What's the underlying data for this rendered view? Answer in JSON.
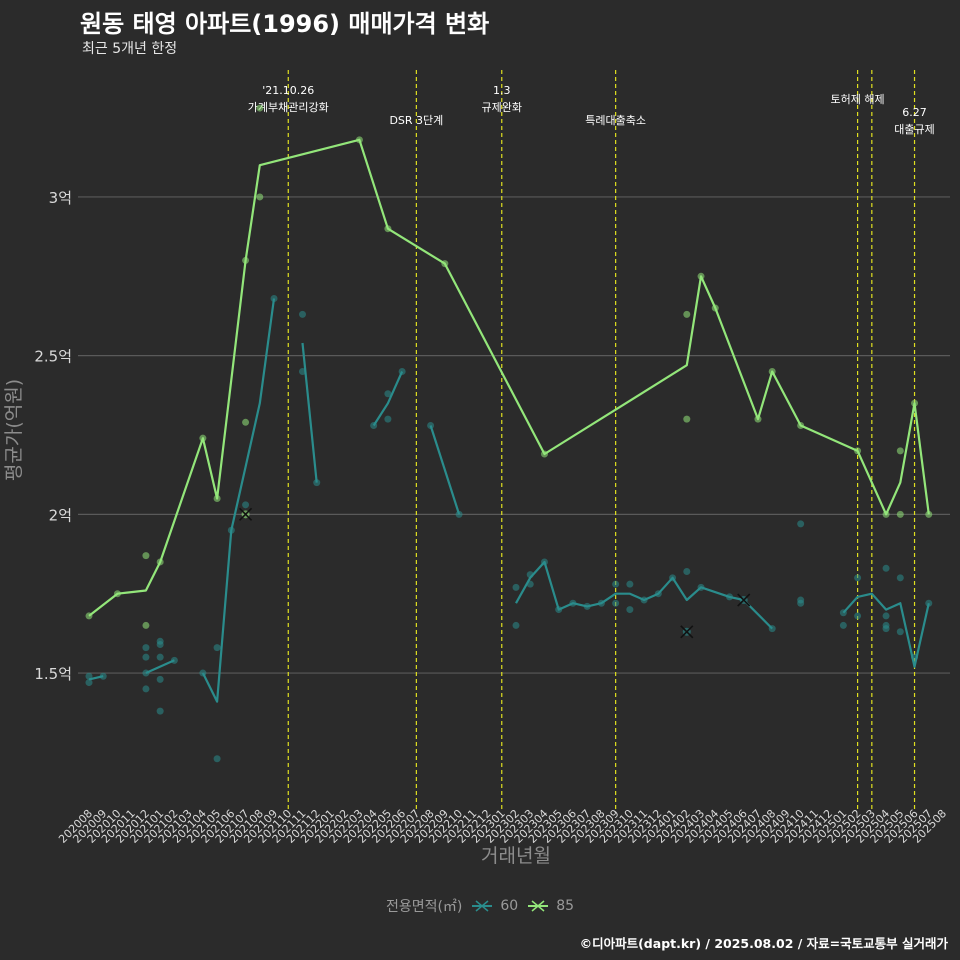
{
  "title": "원동 태영 아파트(1996) 매매가격 변화",
  "subtitle": "최근 5개년 한정",
  "caption": "©디아파트(dapt.kr) / 2025.08.02 / 자료=국토교통부 실거래가",
  "chart_data": {
    "type": "line",
    "xlabel": "거래년월",
    "ylabel": "평균가(억원)",
    "x_categories": [
      "202008",
      "202009",
      "202010",
      "202011",
      "202012",
      "202101",
      "202102",
      "202103",
      "202104",
      "202105",
      "202106",
      "202107",
      "202108",
      "202109",
      "202110",
      "202111",
      "202112",
      "202201",
      "202202",
      "202203",
      "202204",
      "202205",
      "202206",
      "202207",
      "202208",
      "202209",
      "202210",
      "202211",
      "202212",
      "202301",
      "202302",
      "202303",
      "202304",
      "202305",
      "202306",
      "202307",
      "202308",
      "202309",
      "202310",
      "202311",
      "202312",
      "202401",
      "202402",
      "202403",
      "202404",
      "202405",
      "202406",
      "202407",
      "202408",
      "202409",
      "202410",
      "202411",
      "202412",
      "202501",
      "202502",
      "202503",
      "202504",
      "202505",
      "202506",
      "202507",
      "202508"
    ],
    "y_ticks": [
      1.5,
      2,
      2.5,
      3
    ],
    "y_tick_labels": [
      "1.5억",
      "2억",
      "2.5억",
      "3억"
    ],
    "ylim": [
      1.1,
      3.4
    ],
    "grid": true,
    "legend": {
      "title": "전용면적(㎡)",
      "position": "bottom",
      "items": [
        "60",
        "85"
      ]
    },
    "colors": {
      "60": "#2a8c8c",
      "85": "#93e67a",
      "vline": "#e0e020",
      "grid": "#5a5a5a",
      "background": "#2b2b2b"
    },
    "series": [
      {
        "name": "60",
        "segments": [
          [
            [
              "202008",
              1.48
            ],
            [
              "202009",
              1.49
            ]
          ],
          [
            [
              "202012",
              1.5
            ],
            [
              "202102",
              1.54
            ]
          ],
          [
            [
              "202104",
              1.5
            ],
            [
              "202105",
              1.41
            ],
            [
              "202106",
              1.95
            ],
            [
              "202107",
              2.15
            ],
            [
              "202108",
              2.35
            ],
            [
              "202109",
              2.68
            ]
          ],
          [
            [
              "202111",
              2.54
            ],
            [
              "202112",
              2.1
            ]
          ],
          [
            [
              "202204",
              2.28
            ],
            [
              "202205",
              2.35
            ],
            [
              "202206",
              2.45
            ]
          ],
          [
            [
              "202208",
              2.28
            ],
            [
              "202210",
              2.0
            ]
          ],
          [
            [
              "202302",
              1.72
            ],
            [
              "202303",
              1.8
            ],
            [
              "202304",
              1.85
            ],
            [
              "202305",
              1.7
            ],
            [
              "202306",
              1.72
            ],
            [
              "202307",
              1.71
            ],
            [
              "202308",
              1.72
            ],
            [
              "202309",
              1.75
            ],
            [
              "202310",
              1.75
            ],
            [
              "202311",
              1.73
            ],
            [
              "202312",
              1.75
            ],
            [
              "202401",
              1.8
            ],
            [
              "202402",
              1.73
            ],
            [
              "202403",
              1.77
            ],
            [
              "202405",
              1.74
            ],
            [
              "202406",
              1.73
            ],
            [
              "202408",
              1.64
            ]
          ],
          [
            [
              "202501",
              1.69
            ],
            [
              "202502",
              1.74
            ],
            [
              "202503",
              1.75
            ],
            [
              "202504",
              1.7
            ],
            [
              "202505",
              1.72
            ],
            [
              "202506",
              1.52
            ],
            [
              "202507",
              1.72
            ]
          ]
        ],
        "points": [
          [
            "202008",
            1.49
          ],
          [
            "202008",
            1.47
          ],
          [
            "202009",
            1.49
          ],
          [
            "202012",
            1.58
          ],
          [
            "202012",
            1.55
          ],
          [
            "202012",
            1.5
          ],
          [
            "202012",
            1.45
          ],
          [
            "202101",
            1.6
          ],
          [
            "202101",
            1.59
          ],
          [
            "202101",
            1.55
          ],
          [
            "202101",
            1.48
          ],
          [
            "202101",
            1.38
          ],
          [
            "202102",
            1.54
          ],
          [
            "202104",
            1.5
          ],
          [
            "202105",
            1.58
          ],
          [
            "202105",
            1.23
          ],
          [
            "202106",
            1.95
          ],
          [
            "202107",
            2.03
          ],
          [
            "202109",
            2.68
          ],
          [
            "202111",
            2.63
          ],
          [
            "202111",
            2.45
          ],
          [
            "202112",
            2.1
          ],
          [
            "202204",
            2.28
          ],
          [
            "202205",
            2.38
          ],
          [
            "202205",
            2.3
          ],
          [
            "202206",
            2.45
          ],
          [
            "202208",
            2.28
          ],
          [
            "202210",
            2.0
          ],
          [
            "202302",
            1.77
          ],
          [
            "202302",
            1.65
          ],
          [
            "202303",
            1.81
          ],
          [
            "202303",
            1.78
          ],
          [
            "202304",
            1.85
          ],
          [
            "202305",
            1.7
          ],
          [
            "202306",
            1.72
          ],
          [
            "202307",
            1.71
          ],
          [
            "202308",
            1.72
          ],
          [
            "202309",
            1.78
          ],
          [
            "202309",
            1.72
          ],
          [
            "202310",
            1.78
          ],
          [
            "202310",
            1.7
          ],
          [
            "202311",
            1.73
          ],
          [
            "202312",
            1.75
          ],
          [
            "202401",
            1.8
          ],
          [
            "202402",
            1.82
          ],
          [
            "202403",
            1.77
          ],
          [
            "202405",
            1.74
          ],
          [
            "202408",
            1.64
          ],
          [
            "202410",
            1.97
          ],
          [
            "202410",
            1.73
          ],
          [
            "202410",
            1.72
          ],
          [
            "202501",
            1.69
          ],
          [
            "202501",
            1.65
          ],
          [
            "202502",
            1.8
          ],
          [
            "202502",
            1.68
          ],
          [
            "202504",
            1.83
          ],
          [
            "202504",
            1.68
          ],
          [
            "202504",
            1.65
          ],
          [
            "202504",
            1.64
          ],
          [
            "202505",
            1.8
          ],
          [
            "202505",
            1.63
          ],
          [
            "202506",
            1.55
          ],
          [
            "202507",
            1.72
          ]
        ],
        "cancelled": [
          [
            "202402",
            1.63
          ],
          [
            "202406",
            1.73
          ]
        ]
      },
      {
        "name": "85",
        "segments": [
          [
            [
              "202008",
              1.68
            ],
            [
              "202010",
              1.75
            ],
            [
              "202012",
              1.76
            ],
            [
              "202101",
              1.85
            ],
            [
              "202104",
              2.24
            ],
            [
              "202105",
              2.05
            ],
            [
              "202107",
              2.8
            ],
            [
              "202108",
              3.1
            ],
            [
              "202203",
              3.18
            ],
            [
              "202205",
              2.9
            ],
            [
              "202209",
              2.79
            ],
            [
              "202304",
              2.19
            ],
            [
              "202402",
              2.47
            ],
            [
              "202403",
              2.75
            ],
            [
              "202404",
              2.65
            ],
            [
              "202407",
              2.3
            ],
            [
              "202408",
              2.45
            ],
            [
              "202410",
              2.28
            ],
            [
              "202502",
              2.2
            ],
            [
              "202504",
              2.0
            ],
            [
              "202505",
              2.1
            ],
            [
              "202506",
              2.35
            ],
            [
              "202507",
              2.0
            ]
          ]
        ],
        "points": [
          [
            "202008",
            1.68
          ],
          [
            "202010",
            1.75
          ],
          [
            "202012",
            1.87
          ],
          [
            "202012",
            1.65
          ],
          [
            "202101",
            1.85
          ],
          [
            "202104",
            2.24
          ],
          [
            "202105",
            2.05
          ],
          [
            "202107",
            2.8
          ],
          [
            "202107",
            2.29
          ],
          [
            "202108",
            3.28
          ],
          [
            "202108",
            3.0
          ],
          [
            "202203",
            3.18
          ],
          [
            "202205",
            2.9
          ],
          [
            "202209",
            2.79
          ],
          [
            "202304",
            2.19
          ],
          [
            "202402",
            2.63
          ],
          [
            "202402",
            2.3
          ],
          [
            "202403",
            2.75
          ],
          [
            "202404",
            2.65
          ],
          [
            "202407",
            2.3
          ],
          [
            "202408",
            2.45
          ],
          [
            "202410",
            2.28
          ],
          [
            "202502",
            2.2
          ],
          [
            "202504",
            2.0
          ],
          [
            "202505",
            2.2
          ],
          [
            "202505",
            2.0
          ],
          [
            "202506",
            2.35
          ],
          [
            "202507",
            2.0
          ]
        ],
        "cancelled": [
          [
            "202107",
            2.0
          ]
        ]
      }
    ],
    "annotations": [
      {
        "x": "202110",
        "lines": [
          "'21.10.26",
          "가계부채관리강화"
        ]
      },
      {
        "x": "202207",
        "lines": [
          "DSR 3단계"
        ]
      },
      {
        "x": "202301",
        "lines": [
          "1.3",
          "규제완화"
        ]
      },
      {
        "x": "202309",
        "lines": [
          "특례대출축소"
        ]
      },
      {
        "x": "202502",
        "lines": [
          "토허제 해제"
        ]
      },
      {
        "x": "202503",
        "lines": []
      },
      {
        "x": "202506",
        "lines": [
          "6.27",
          "대출규제"
        ]
      }
    ]
  }
}
